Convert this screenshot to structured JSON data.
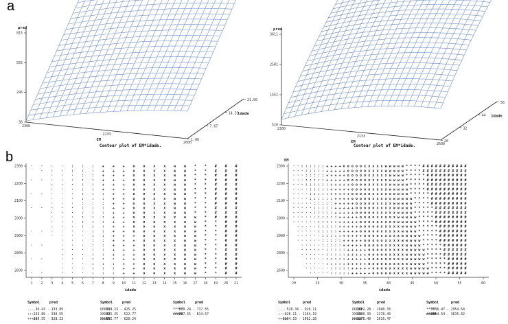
{
  "labels": {
    "a": "a",
    "b": "b"
  },
  "chart_data": [
    {
      "type": "surface",
      "panel": "a-left",
      "zlabel": "pred",
      "xlabel": "EM",
      "ylabel": "ldade",
      "z_ticks": [
        "36",
        "296",
        "555",
        "815"
      ],
      "x_ticks": [
        "2300",
        "2133",
        "2600"
      ],
      "y_ticks": [
        "1.00",
        "7.67",
        "14.33",
        "21.00"
      ],
      "grid": {
        "rows": 24,
        "cols": 24
      },
      "color": "#6f8fbf"
    },
    {
      "type": "surface",
      "panel": "a-right",
      "zlabel": "pred",
      "xlabel": "EM",
      "ylabel": "idade",
      "z_ticks": [
        "520",
        "1552",
        "2581",
        "3611"
      ],
      "x_ticks": [
        "2300",
        "2133",
        "2600"
      ],
      "y_ticks": [
        "20",
        "32",
        "44",
        "56"
      ],
      "grid": {
        "rows": 24,
        "cols": 24
      },
      "color": "#6f8fbf"
    },
    {
      "type": "contour",
      "panel": "b-left",
      "title": "Contour plot of EM*idade.",
      "xlabel": "idade",
      "ylabel": "",
      "x_ticks": [
        "1",
        "2",
        "3",
        "4",
        "5",
        "6",
        "7",
        "8",
        "9",
        "10",
        "11",
        "12",
        "13",
        "14",
        "15",
        "16",
        "17",
        "18",
        "19",
        "20",
        "21"
      ],
      "y_ticks": [
        "2300",
        "2200",
        "2100",
        "2000",
        "2900",
        "2800",
        "2600"
      ],
      "legend": [
        {
          "symbol": "....",
          "range": "36.43 - 133.89"
        },
        {
          "symbol": "::::",
          "range": "133.89 - 230.55"
        },
        {
          "symbol": "+++++",
          "range": "230.55 - 328.23"
        },
        {
          "symbol": "OOOOO",
          "range": "328.23 - 425.25"
        },
        {
          "symbol": "XXXXX",
          "range": "425.25 - 522.77"
        },
        {
          "symbol": "WWWWW",
          "range": "522.77 - 620.24"
        },
        {
          "symbol": "*****",
          "range": "620.24 - 717.55"
        },
        {
          "symbol": "#####",
          "range": "717.55 - 814.57"
        }
      ],
      "legend_headers": {
        "symbol": "Symbol",
        "value": "pred"
      }
    },
    {
      "type": "contour",
      "panel": "b-right",
      "title": "Contour plot of EM*idade.",
      "xlabel": "idade",
      "ylabel": "EM",
      "x_ticks": [
        "20",
        "25",
        "30",
        "35",
        "40",
        "45",
        "50",
        "55",
        "60"
      ],
      "y_ticks": [
        "2300",
        "2200",
        "2100",
        "2000",
        "2900",
        "2800",
        "2600"
      ],
      "legend": [
        {
          "symbol": "....",
          "range": "520.34 - 926.11"
        },
        {
          "symbol": "::::",
          "range": "926.11 - 1264.19"
        },
        {
          "symbol": "+++++",
          "range": "1264.19 - 1602.28"
        },
        {
          "symbol": "OOOOO",
          "range": "1602.28 - 1940.33"
        },
        {
          "symbol": "XXXXX",
          "range": "1940.33 - 2278.40"
        },
        {
          "symbol": "WWWWW",
          "range": "2278.40 - 2616.47"
        },
        {
          "symbol": "*****",
          "range": "2616.47 - 2954.54"
        },
        {
          "symbol": "#####",
          "range": "2954.54 - 3615.02"
        }
      ],
      "legend_headers": {
        "symbol": "Symbol",
        "value": "pred"
      }
    }
  ]
}
